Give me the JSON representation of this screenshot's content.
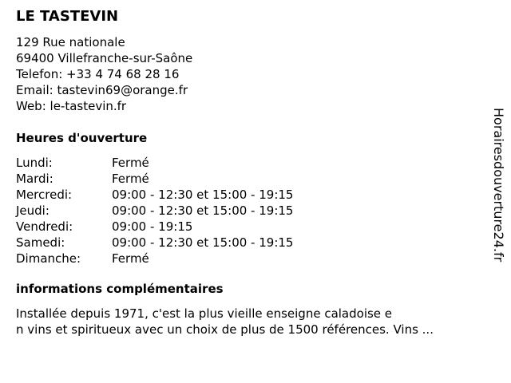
{
  "name": "LE TASTEVIN",
  "address": {
    "street": "129 Rue nationale",
    "city": "69400 Villefranche-sur-Saône",
    "phone": "Telefon: +33 4 74 68 28 16",
    "email": "Email: tastevin69@orange.fr",
    "web": "Web: le-tastevin.fr"
  },
  "hours_heading": "Heures d'ouverture",
  "hours": [
    {
      "day": "Lundi:",
      "value": "Fermé"
    },
    {
      "day": "Mardi:",
      "value": "Fermé"
    },
    {
      "day": "Mercredi:",
      "value": "09:00 - 12:30 et 15:00 - 19:15"
    },
    {
      "day": "Jeudi:",
      "value": "09:00 - 12:30 et 15:00 - 19:15"
    },
    {
      "day": "Vendredi:",
      "value": "09:00 - 19:15"
    },
    {
      "day": "Samedi:",
      "value": "09:00 - 12:30 et 15:00 - 19:15"
    },
    {
      "day": "Dimanche:",
      "value": "Fermé"
    }
  ],
  "info_heading": "informations complémentaires",
  "info_lines": [
    "Installée depuis 1971, c'est la plus vieille enseigne caladoise e",
    "n vins et spiritueux avec un choix de plus de 1500 références. Vins ..."
  ],
  "side_label": "Horairesdouverture24.fr"
}
